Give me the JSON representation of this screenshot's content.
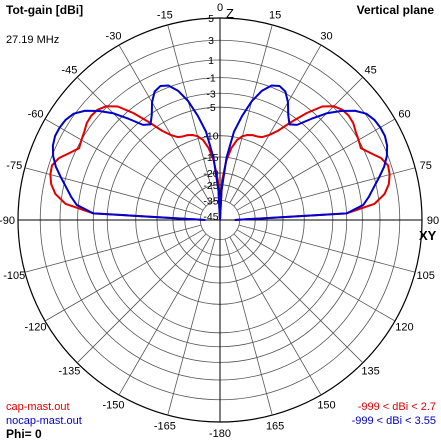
{
  "header": {
    "title": "Tot-gain [dBi]",
    "frequency": "27.19 MHz",
    "plane": "Vertical plane"
  },
  "axis_labels": {
    "top": "Z",
    "right": "XY"
  },
  "legend": [
    {
      "file": "cap-mast.out",
      "range": "-999 < dBi < 2.7",
      "color": "#e00000"
    },
    {
      "file": "nocap-mast.out",
      "range": "-999 < dBi < 3.55",
      "color": "#0000cc"
    }
  ],
  "phi_label": "Phi= 0",
  "chart_data": {
    "type": "polar",
    "title": "Tot-gain [dBi]",
    "angle_tick_labels": [
      "0",
      "15",
      "30",
      "45",
      "60",
      "75",
      "90",
      "105",
      "120",
      "135",
      "150",
      "165",
      "-180",
      "-165",
      "-150",
      "-135",
      "-120",
      "-105",
      "-90",
      "-75",
      "-60",
      "-45",
      "-30",
      "-15"
    ],
    "angle_ticks_deg": [
      0,
      15,
      30,
      45,
      60,
      75,
      90,
      105,
      120,
      135,
      150,
      165,
      180,
      -165,
      -150,
      -135,
      -120,
      -105,
      -90,
      -75,
      -60,
      -45,
      -30,
      -15
    ],
    "radial_tick_labels": [
      "5",
      "3",
      "1",
      "-1",
      "-3",
      "-5",
      "-10",
      "-15",
      "-20",
      "-25",
      "-35",
      "-45"
    ],
    "radial_ticks_dbi": [
      5,
      3,
      1,
      -1,
      -3,
      -5,
      -10,
      -15,
      -20,
      -25,
      -35,
      -45
    ],
    "radial_range_dbi": [
      -45,
      5
    ],
    "angle_zero": "top (zenith)",
    "grid": true,
    "series": [
      {
        "name": "cap-mast.out",
        "color": "#e00000",
        "max_dbi": 2.7,
        "theta_deg": [
          0,
          3,
          6,
          9,
          12,
          15,
          18,
          21,
          24,
          27,
          30,
          33,
          36,
          39,
          42,
          45,
          48,
          51,
          54,
          57,
          60,
          63,
          66,
          69,
          72,
          75,
          78,
          81,
          84,
          87,
          90
        ],
        "gain_dbi": [
          -45,
          -23,
          -16,
          -12.5,
          -10.5,
          -9.5,
          -9,
          -8.7,
          -8.6,
          -8.3,
          -7.4,
          -6,
          -3.8,
          -1.6,
          0.2,
          1.1,
          1.5,
          1.6,
          1.5,
          1.2,
          1,
          0.8,
          1.5,
          2.3,
          2.7,
          2.6,
          2.3,
          1.7,
          0.5,
          -3,
          -40
        ]
      },
      {
        "name": "nocap-mast.out",
        "color": "#0000cc",
        "max_dbi": 3.55,
        "theta_deg": [
          0,
          3,
          6,
          9,
          12,
          15,
          18,
          21,
          24,
          27,
          30,
          33,
          36,
          39,
          42,
          45,
          48,
          51,
          54,
          57,
          60,
          63,
          66,
          69,
          72,
          75,
          78,
          81,
          84,
          87,
          90
        ],
        "gain_dbi": [
          -45,
          -28,
          -15,
          -9,
          -6,
          -3.5,
          -1.8,
          -0.8,
          -0.5,
          -0.8,
          -1.8,
          -3.2,
          -4.2,
          -3.6,
          -1.8,
          0,
          1.3,
          2.4,
          3.1,
          3.4,
          3.5,
          3.5,
          3.3,
          2.9,
          2.3,
          1.5,
          0.7,
          0,
          -0.8,
          -3,
          -40
        ]
      }
    ],
    "symmetry": "mirrored about Z axis"
  }
}
